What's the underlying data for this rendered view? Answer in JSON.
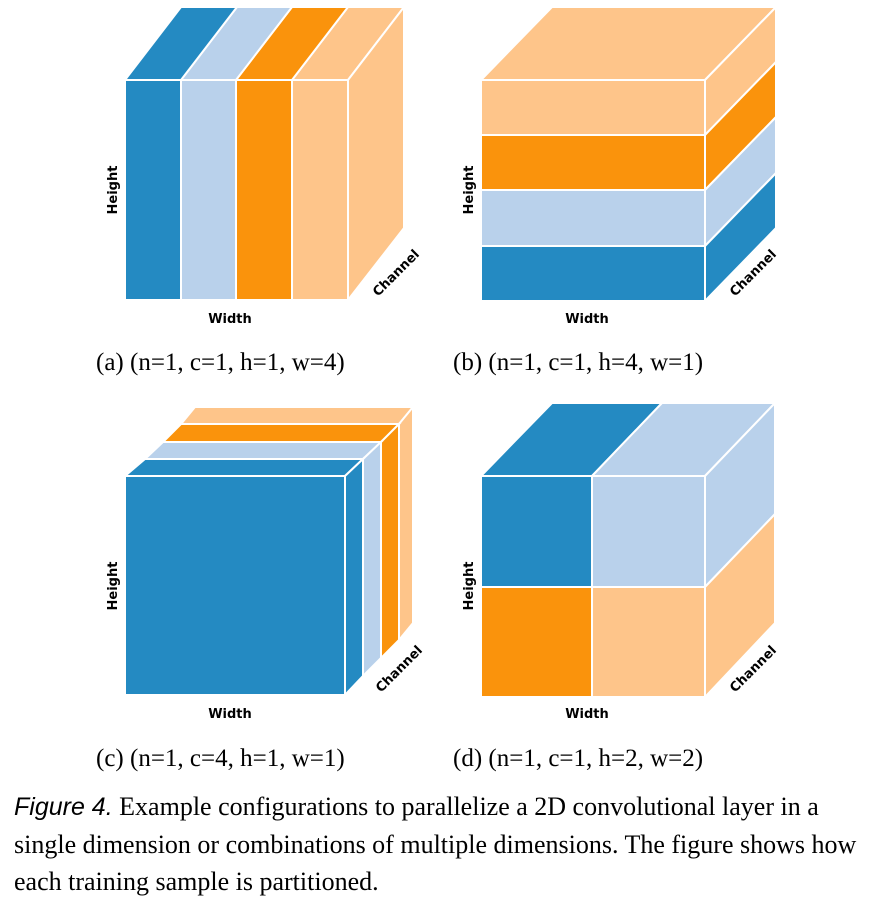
{
  "colors": {
    "dark_blue": "#248ac2",
    "light_blue": "#b9d1eb",
    "orange": "#fa930c",
    "light_orange": "#fec58a"
  },
  "panels": [
    {
      "id": "a",
      "subcaption": "(a) (n=1, c=1, h=1, w=4)",
      "config": {
        "n": 1,
        "c": 1,
        "h": 1,
        "w": 4
      },
      "axis_labels": {
        "height": "Height",
        "width": "Width",
        "channel": "Channel"
      }
    },
    {
      "id": "b",
      "subcaption": "(b) (n=1, c=1, h=4, w=1)",
      "config": {
        "n": 1,
        "c": 1,
        "h": 4,
        "w": 1
      },
      "axis_labels": {
        "height": "Height",
        "width": "Width",
        "channel": "Channel"
      }
    },
    {
      "id": "c",
      "subcaption": "(c) (n=1, c=4, h=1, w=1)",
      "config": {
        "n": 1,
        "c": 4,
        "h": 1,
        "w": 1
      },
      "axis_labels": {
        "height": "Height",
        "width": "Width",
        "channel": "Channel"
      }
    },
    {
      "id": "d",
      "subcaption": "(d) (n=1, c=1, h=2, w=2)",
      "config": {
        "n": 1,
        "c": 1,
        "h": 2,
        "w": 2
      },
      "axis_labels": {
        "height": "Height",
        "width": "Width",
        "channel": "Channel"
      }
    }
  ],
  "caption": {
    "label": "Figure 4.",
    "text": "Example configurations to parallelize a 2D convolutional layer in a single dimension or combinations of multiple dimensions. The figure shows how each training sample is partitioned."
  }
}
